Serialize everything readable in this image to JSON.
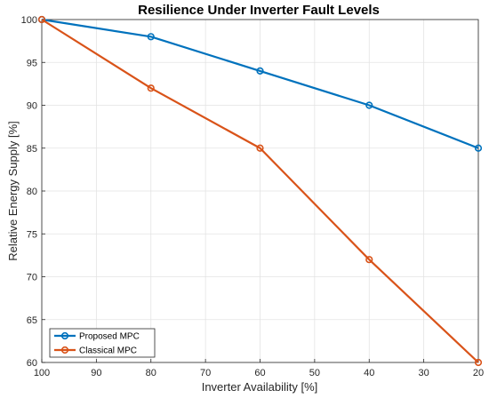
{
  "chart_data": {
    "type": "line",
    "title": "Resilience Under Inverter Fault Levels",
    "xlabel": "Inverter Availability [%]",
    "ylabel": "Relative Energy Supply [%]",
    "xlim": [
      100,
      20
    ],
    "ylim": [
      60,
      100
    ],
    "x_reversed": true,
    "xticks": [
      "100",
      "90",
      "80",
      "70",
      "60",
      "50",
      "40",
      "30",
      "20"
    ],
    "yticks": [
      "60",
      "65",
      "70",
      "75",
      "80",
      "85",
      "90",
      "95",
      "100"
    ],
    "grid": true,
    "legend_position": "bottom-left",
    "x": [
      100,
      80,
      60,
      40,
      20
    ],
    "series": [
      {
        "name": "Proposed MPC",
        "values": [
          100,
          98,
          94,
          90,
          85
        ],
        "color": "#0072BD",
        "marker": "circle"
      },
      {
        "name": "Classical MPC",
        "values": [
          100,
          92,
          85,
          72,
          60
        ],
        "color": "#D95319",
        "marker": "circle"
      }
    ]
  }
}
